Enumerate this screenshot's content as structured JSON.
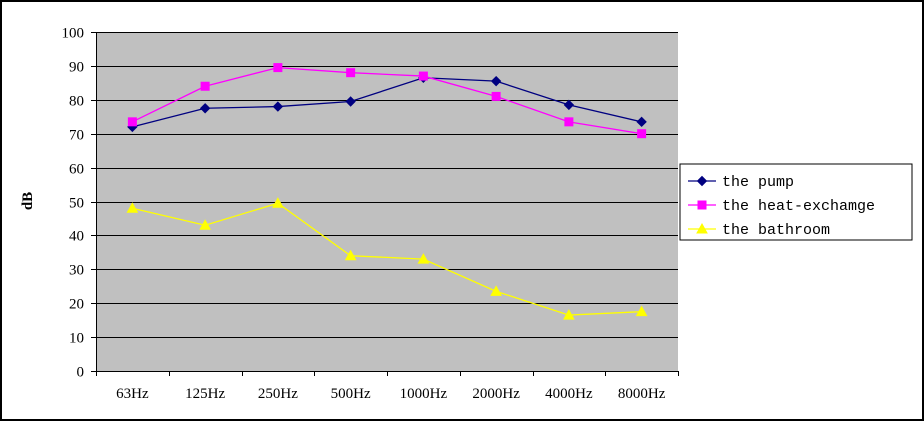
{
  "chart_data": {
    "type": "line",
    "title": "",
    "xlabel": "",
    "ylabel": "dB",
    "ylim": [
      0,
      100
    ],
    "yticks": [
      0,
      10,
      20,
      30,
      40,
      50,
      60,
      70,
      80,
      90,
      100
    ],
    "categories": [
      "63Hz",
      "125Hz",
      "250Hz",
      "500Hz",
      "1000Hz",
      "2000Hz",
      "4000Hz",
      "8000Hz"
    ],
    "grid": "horizontal",
    "legend_position": "right",
    "series": [
      {
        "name": "the pump",
        "marker": "diamond",
        "color": "#000080",
        "values": [
          72,
          77.5,
          78,
          79.5,
          86.5,
          85.5,
          78.5,
          73.5
        ]
      },
      {
        "name": "the heat-exchamge",
        "marker": "square",
        "color": "#FF00FF",
        "values": [
          73.5,
          84,
          89.5,
          88,
          87,
          81,
          73.5,
          70
        ]
      },
      {
        "name": "the bathroom",
        "marker": "triangle",
        "color": "#FFFF00",
        "values": [
          48,
          43,
          49.5,
          34,
          33,
          23.5,
          16.5,
          17.5
        ]
      }
    ]
  }
}
